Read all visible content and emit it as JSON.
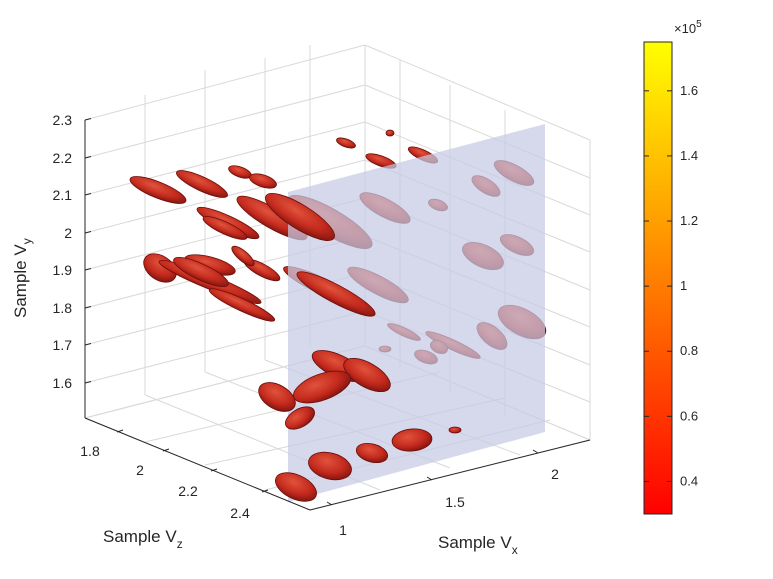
{
  "chart_data": {
    "type": "3d-isosurface",
    "title": "",
    "axes": {
      "x": {
        "label": "Sample V",
        "label_sub": "x",
        "range": [
          0.9,
          2.3
        ],
        "ticks": [
          "1",
          "1.5",
          "2"
        ]
      },
      "y": {
        "label": "Sample V",
        "label_sub": "y",
        "range": [
          1.5,
          2.3
        ],
        "ticks": [
          "1.6",
          "1.7",
          "1.8",
          "1.9",
          "2",
          "2.1",
          "2.2",
          "2.3"
        ]
      },
      "z": {
        "label": "Sample V",
        "label_sub": "z",
        "range": [
          1.7,
          2.55
        ],
        "ticks": [
          "1.8",
          "2",
          "2.2",
          "2.4"
        ]
      }
    },
    "grid": true,
    "box": false,
    "slice_plane": {
      "axis": "x",
      "value": 1.45,
      "color": "#c5cbe3"
    },
    "colorbar": {
      "range": [
        30000,
        175000
      ],
      "exponent_label": "×10",
      "exponent": "5",
      "ticks": [
        "0.4",
        "0.6",
        "0.8",
        "1",
        "1.2",
        "1.4",
        "1.6"
      ],
      "colormap": "autumn",
      "colors": [
        "#ff0000",
        "#ff8000",
        "#ffff00"
      ]
    },
    "blob_color": "#c8281e",
    "blob_edge": "#6a0e0a"
  }
}
